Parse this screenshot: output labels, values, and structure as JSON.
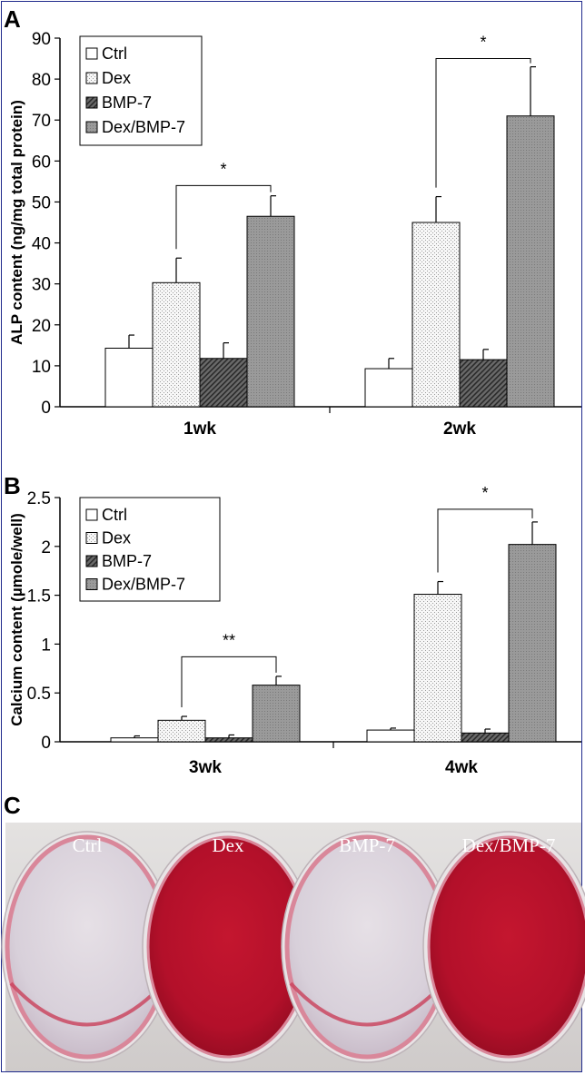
{
  "chart_data": [
    {
      "type": "bar",
      "panel": "A",
      "ylabel": "ALP content (ng/mg total protein)",
      "ylim": [
        0,
        90
      ],
      "yticks": [
        0,
        10,
        20,
        30,
        40,
        50,
        60,
        70,
        80,
        90
      ],
      "categories": [
        "1wk",
        "2wk"
      ],
      "series": [
        {
          "name": "Ctrl",
          "values": [
            14.3,
            9.3
          ],
          "errors": [
            3.2,
            2.5
          ]
        },
        {
          "name": "Dex",
          "values": [
            30.3,
            45.0
          ],
          "errors": [
            6.0,
            6.3
          ]
        },
        {
          "name": "BMP-7",
          "values": [
            11.8,
            11.5
          ],
          "errors": [
            3.8,
            2.5
          ]
        },
        {
          "name": "Dex/BMP-7",
          "values": [
            46.5,
            71.0
          ],
          "errors": [
            5.0,
            12.0
          ]
        }
      ],
      "significance": [
        {
          "category": 0,
          "from_series": 1,
          "to_series": 3,
          "label": "*",
          "level": 54
        },
        {
          "category": 1,
          "from_series": 1,
          "to_series": 3,
          "label": "*",
          "level": 85
        }
      ],
      "legend": "top-left"
    },
    {
      "type": "bar",
      "panel": "B",
      "ylabel": "Calcium content (µmole/well)",
      "ylim": [
        0,
        2.5
      ],
      "yticks": [
        "0",
        "0.5",
        "1",
        "1.5",
        "2",
        "2.5"
      ],
      "categories": [
        "3wk",
        "4wk"
      ],
      "series": [
        {
          "name": "Ctrl",
          "values": [
            0.04,
            0.12
          ],
          "errors": [
            0.02,
            0.02
          ]
        },
        {
          "name": "Dex",
          "values": [
            0.22,
            1.51
          ],
          "errors": [
            0.04,
            0.13
          ]
        },
        {
          "name": "BMP-7",
          "values": [
            0.04,
            0.09
          ],
          "errors": [
            0.03,
            0.04
          ]
        },
        {
          "name": "Dex/BMP-7",
          "values": [
            0.58,
            2.02
          ],
          "errors": [
            0.09,
            0.23
          ]
        }
      ],
      "significance": [
        {
          "category": 0,
          "from_series": 1,
          "to_series": 3,
          "label": "**",
          "level": 0.87
        },
        {
          "category": 1,
          "from_series": 1,
          "to_series": 3,
          "label": "*",
          "level": 2.38
        }
      ],
      "legend": "top-left"
    }
  ],
  "photo": {
    "panel": "C",
    "wells": [
      "Ctrl",
      "Dex",
      "BMP-7",
      "Dex/BMP-7"
    ],
    "staining": [
      "light",
      "dark",
      "light",
      "dark"
    ],
    "colors": {
      "stain_dark": "#b3102a",
      "stain_light": "#ddd4dc",
      "rim": "#d9879a",
      "background": "#dcd9d8"
    }
  },
  "style": {
    "fills": [
      "ctrl",
      "dex",
      "bmp",
      "dexbmp"
    ],
    "frame_color": "#1f2a8c"
  }
}
